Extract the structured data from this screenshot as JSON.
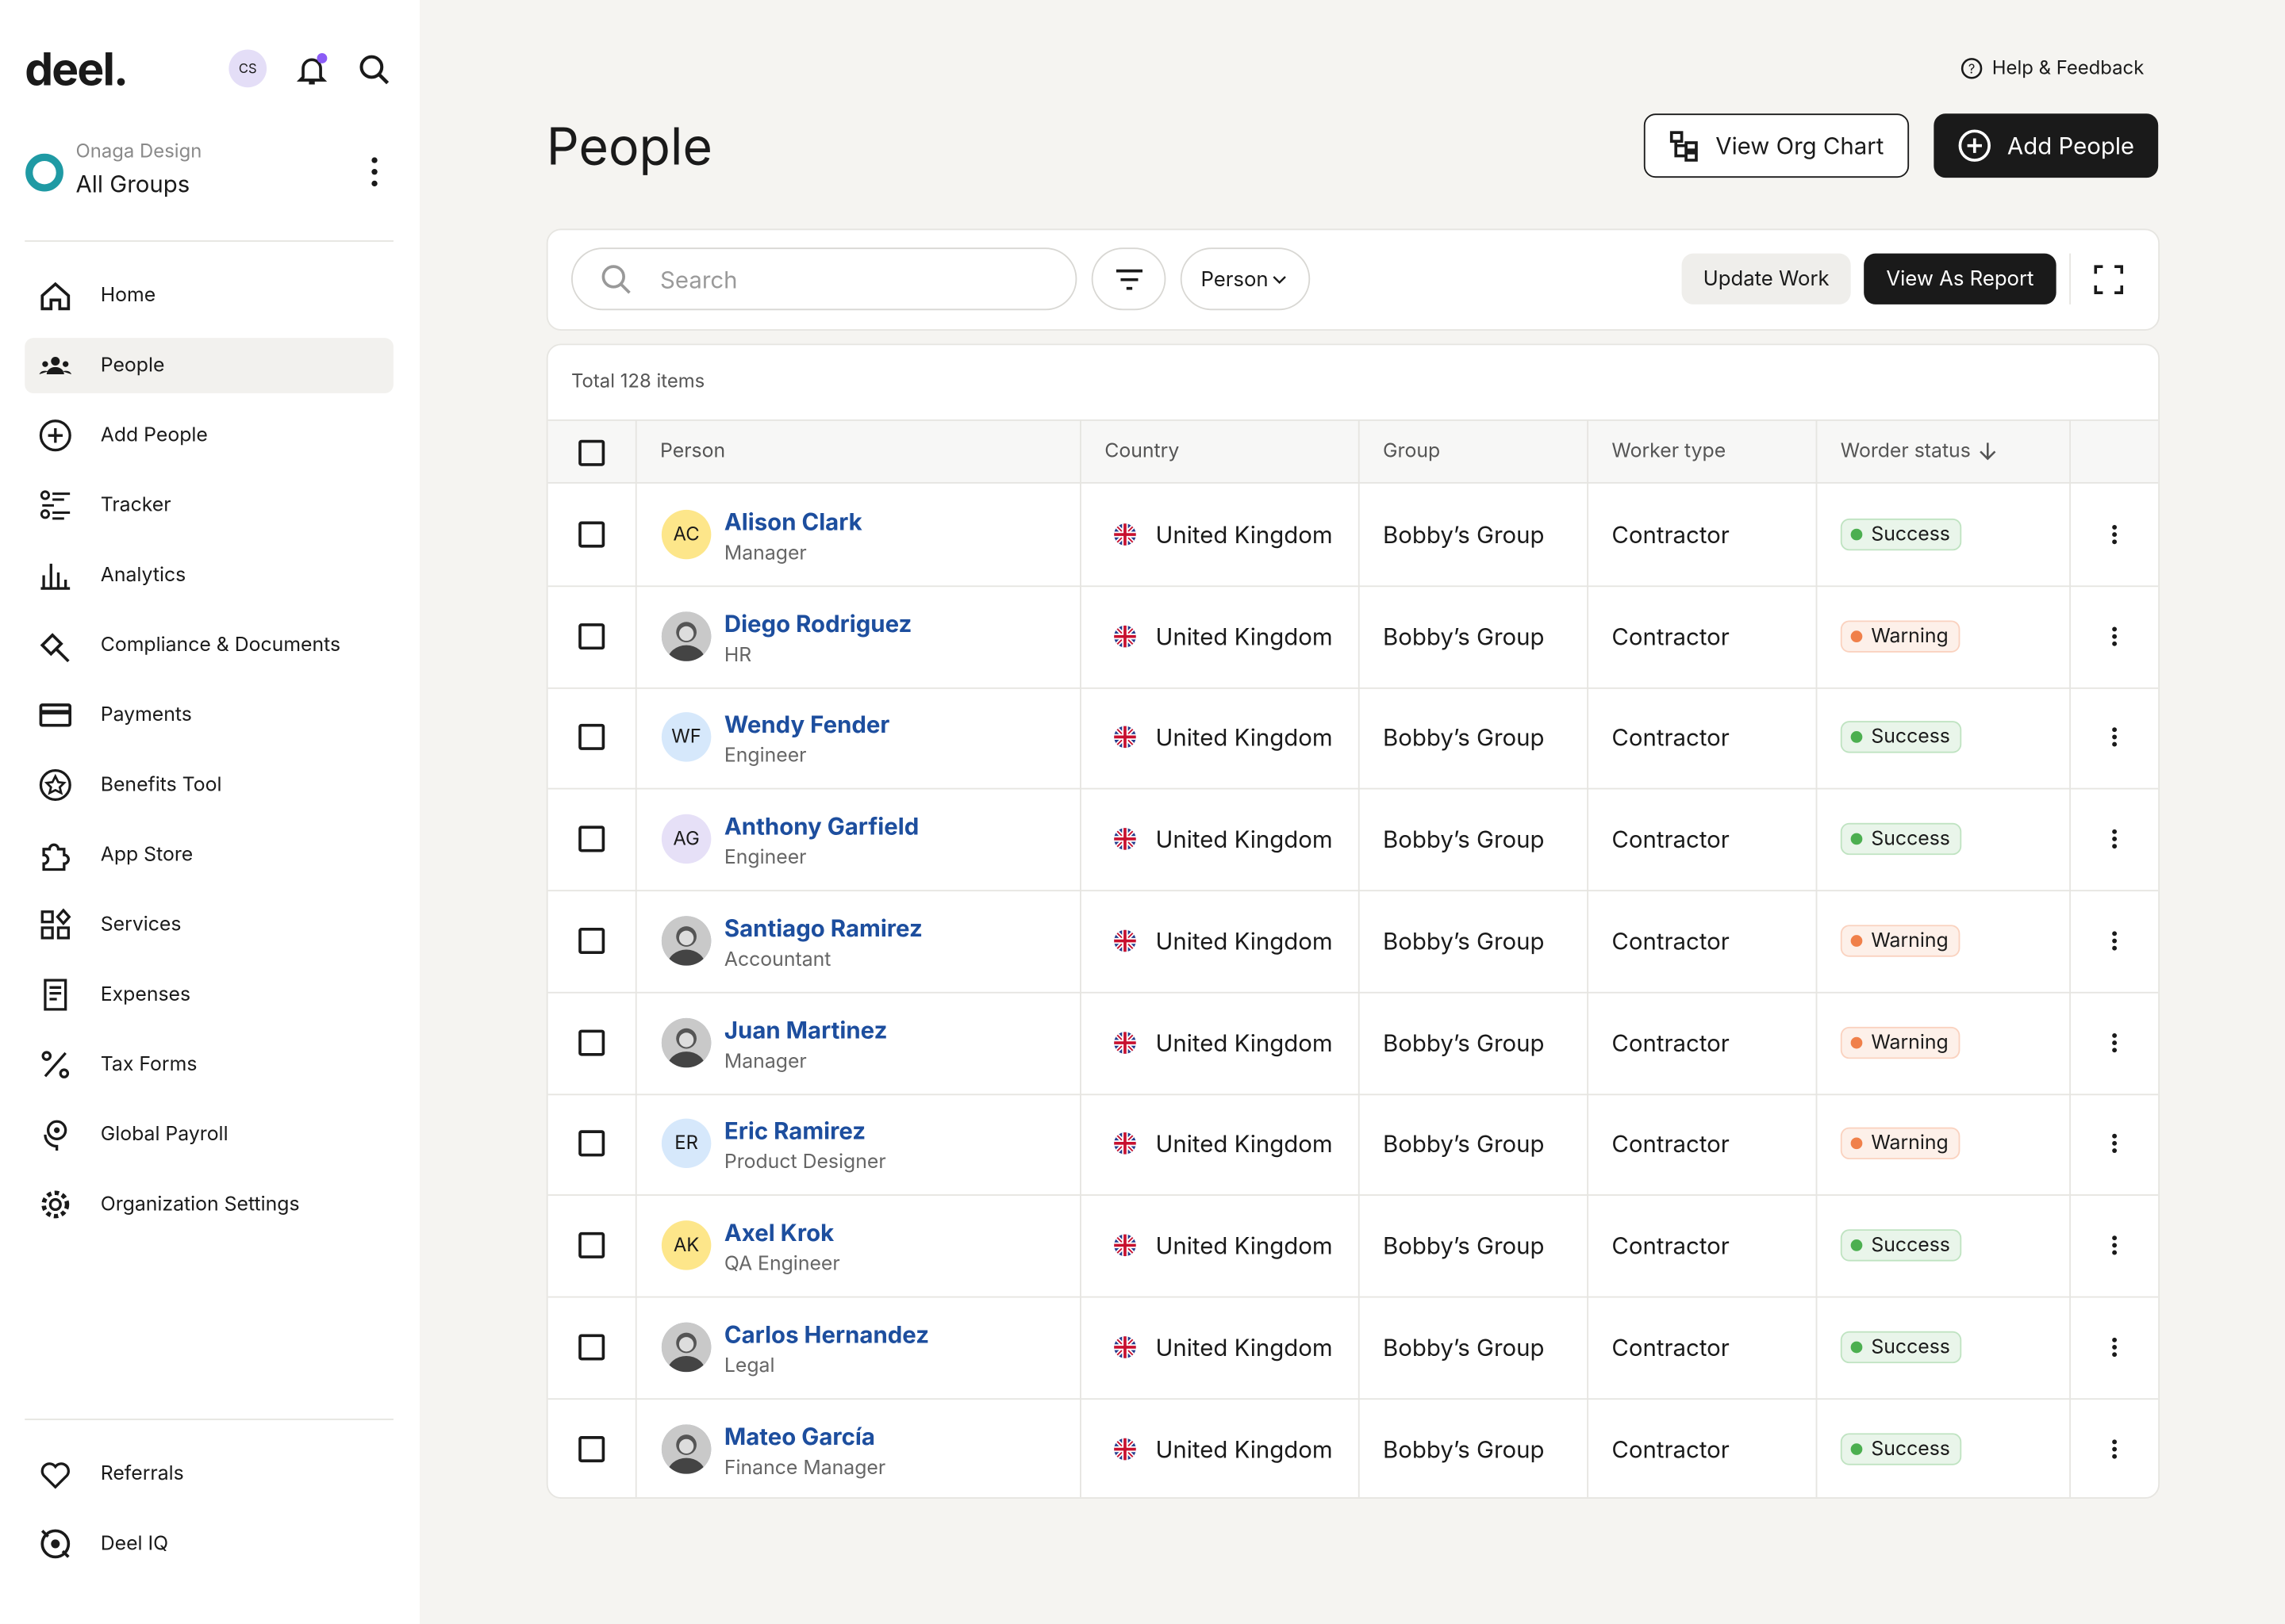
{
  "sidebar": {
    "logo": "deel.",
    "avatar": "CS",
    "org": "Onaga Design",
    "group": "All Groups",
    "nav": [
      "Home",
      "People",
      "Add People",
      "Tracker",
      "Analytics",
      "Compliance & Documents",
      "Payments",
      "Benefits Tool",
      "App Store",
      "Services",
      "Expenses",
      "Tax Forms",
      "Global Payroll",
      "Organization Settings"
    ],
    "active": 1,
    "bottom": [
      "Referrals",
      "Deel IQ"
    ]
  },
  "header": {
    "help": "Help & Feedback",
    "title": "People",
    "org_chart": "View Org Chart",
    "add": "Add People"
  },
  "toolbar": {
    "search": "Search",
    "filter": "Person",
    "update": "Update Work",
    "report": "View As Report"
  },
  "table": {
    "total": "Total 128 items",
    "columns": [
      "Person",
      "Country",
      "Group",
      "Worker type",
      "Worder status"
    ],
    "rows": [
      {
        "initials": "AC",
        "avatar_color": "#fde68a",
        "name": "Alison Clark",
        "role": "Manager",
        "country": "United Kingdom",
        "group": "Bobby’s Group",
        "worker": "Contractor",
        "status": "Success",
        "status_color": "#4caf50"
      },
      {
        "avatar_color": "#9ca3af",
        "name": "Diego Rodriguez",
        "role": "HR",
        "country": "United Kingdom",
        "group": "Bobby’s Group",
        "worker": "Contractor",
        "status": "Warning",
        "status_color": "#f0804a"
      },
      {
        "initials": "WF",
        "avatar_color": "#d6e8fb",
        "name": "Wendy Fender",
        "role": "Engineer",
        "country": "United Kingdom",
        "group": "Bobby’s Group",
        "worker": "Contractor",
        "status": "Success",
        "status_color": "#4caf50"
      },
      {
        "initials": "AG",
        "avatar_color": "#e6e0f7",
        "name": "Anthony Garfield",
        "role": "Engineer",
        "country": "United Kingdom",
        "group": "Bobby’s Group",
        "worker": "Contractor",
        "status": "Success",
        "status_color": "#4caf50"
      },
      {
        "avatar_color": "#9ca3af",
        "name": "Santiago Ramirez",
        "role": "Accountant",
        "country": "United Kingdom",
        "group": "Bobby’s Group",
        "worker": "Contractor",
        "status": "Warning",
        "status_color": "#f0804a"
      },
      {
        "avatar_color": "#9ca3af",
        "name": "Juan Martinez",
        "role": "Manager",
        "country": "United Kingdom",
        "group": "Bobby’s Group",
        "worker": "Contractor",
        "status": "Warning",
        "status_color": "#f0804a"
      },
      {
        "initials": "ER",
        "avatar_color": "#d6e8fb",
        "name": "Eric Ramirez",
        "role": "Product Designer",
        "country": "United Kingdom",
        "group": "Bobby’s Group",
        "worker": "Contractor",
        "status": "Warning",
        "status_color": "#f0804a"
      },
      {
        "initials": "AK",
        "avatar_color": "#fde68a",
        "name": "Axel Krok",
        "role": "QA Engineer",
        "country": "United Kingdom",
        "group": "Bobby’s Group",
        "worker": "Contractor",
        "status": "Success",
        "status_color": "#4caf50"
      },
      {
        "avatar_color": "#9ca3af",
        "name": "Carlos Hernandez",
        "role": "Legal",
        "country": "United Kingdom",
        "group": "Bobby’s Group",
        "worker": "Contractor",
        "status": "Success",
        "status_color": "#4caf50"
      },
      {
        "avatar_color": "#9ca3af",
        "name": "Mateo García",
        "role": "Finance Manager",
        "country": "United Kingdom",
        "group": "Bobby’s Group",
        "worker": "Contractor",
        "status": "Success",
        "status_color": "#4caf50"
      }
    ]
  }
}
